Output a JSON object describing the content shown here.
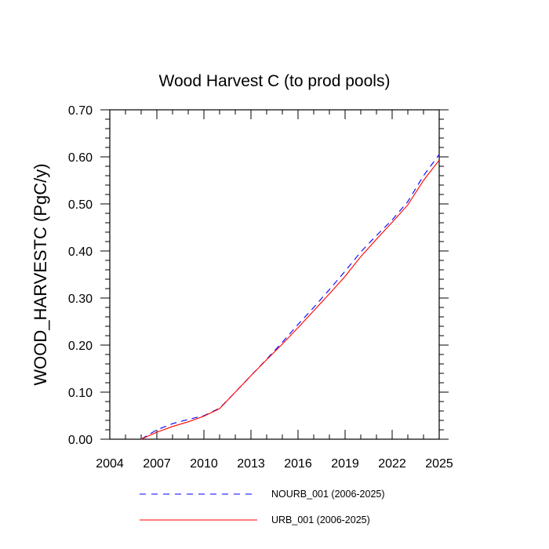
{
  "chart_data": {
    "type": "line",
    "title": "Wood Harvest C (to prod pools)",
    "xlabel": "",
    "ylabel": "WOOD_HARVESTC  (PgC/y)",
    "xlim": [
      2004,
      2025
    ],
    "ylim": [
      0,
      0.7
    ],
    "x_ticks": [
      2004,
      2007,
      2010,
      2013,
      2016,
      2019,
      2022,
      2025
    ],
    "x_tick_labels": [
      "2004",
      "2007",
      "2010",
      "2013",
      "2016",
      "2019",
      "2022",
      "2025"
    ],
    "y_ticks": [
      0,
      0.1,
      0.2,
      0.3,
      0.4,
      0.5,
      0.6,
      0.7
    ],
    "y_tick_labels": [
      "0.00",
      "0.10",
      "0.20",
      "0.30",
      "0.40",
      "0.50",
      "0.60",
      "0.70"
    ],
    "grid": false,
    "legend_position": "bottom",
    "series": [
      {
        "name": "NOURB_001 (2006-2025)",
        "color": "#0000ff",
        "dash": "dashed",
        "x": [
          2006,
          2007,
          2008,
          2009,
          2010,
          2011,
          2012,
          2013,
          2014,
          2015,
          2016,
          2017,
          2018,
          2019,
          2020,
          2021,
          2022,
          2023,
          2024,
          2025
        ],
        "y": [
          0.0,
          0.02,
          0.033,
          0.042,
          0.05,
          0.066,
          0.1,
          0.135,
          0.17,
          0.206,
          0.244,
          0.28,
          0.318,
          0.357,
          0.398,
          0.433,
          0.466,
          0.505,
          0.56,
          0.605
        ]
      },
      {
        "name": "URB_001 (2006-2025)",
        "color": "#ff0000",
        "dash": "solid",
        "x": [
          2006,
          2007,
          2008,
          2009,
          2010,
          2011,
          2012,
          2013,
          2014,
          2015,
          2016,
          2017,
          2018,
          2019,
          2020,
          2021,
          2022,
          2023,
          2024,
          2025
        ],
        "y": [
          0.0,
          0.015,
          0.027,
          0.037,
          0.049,
          0.065,
          0.1,
          0.135,
          0.169,
          0.202,
          0.237,
          0.273,
          0.309,
          0.346,
          0.388,
          0.425,
          0.461,
          0.498,
          0.55,
          0.593
        ]
      }
    ]
  }
}
